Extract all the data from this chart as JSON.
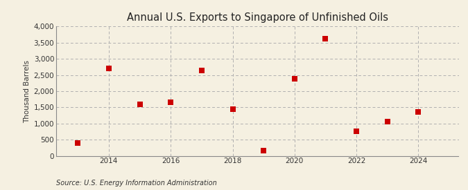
{
  "title": "Annual U.S. Exports to Singapore of Unfinished Oils",
  "ylabel": "Thousand Barrels",
  "source": "Source: U.S. Energy Information Administration",
  "background_color": "#f5f0e1",
  "plot_bg_color": "#f5f0e1",
  "years": [
    2013,
    2014,
    2015,
    2016,
    2017,
    2018,
    2019,
    2020,
    2021,
    2022,
    2023,
    2024
  ],
  "values": [
    400,
    2700,
    1600,
    1650,
    2650,
    1450,
    150,
    2375,
    3625,
    750,
    1050,
    1350
  ],
  "marker_color": "#cc0000",
  "marker_size": 28,
  "ylim": [
    0,
    4000
  ],
  "yticks": [
    0,
    500,
    1000,
    1500,
    2000,
    2500,
    3000,
    3500,
    4000
  ],
  "xlim": [
    2012.3,
    2025.3
  ],
  "xticks": [
    2014,
    2016,
    2018,
    2020,
    2022,
    2024
  ],
  "title_fontsize": 10.5,
  "axis_fontsize": 7.5,
  "source_fontsize": 7,
  "grid_color": "#b0b0b0",
  "grid_linestyle": "-.",
  "spine_color": "#888888"
}
